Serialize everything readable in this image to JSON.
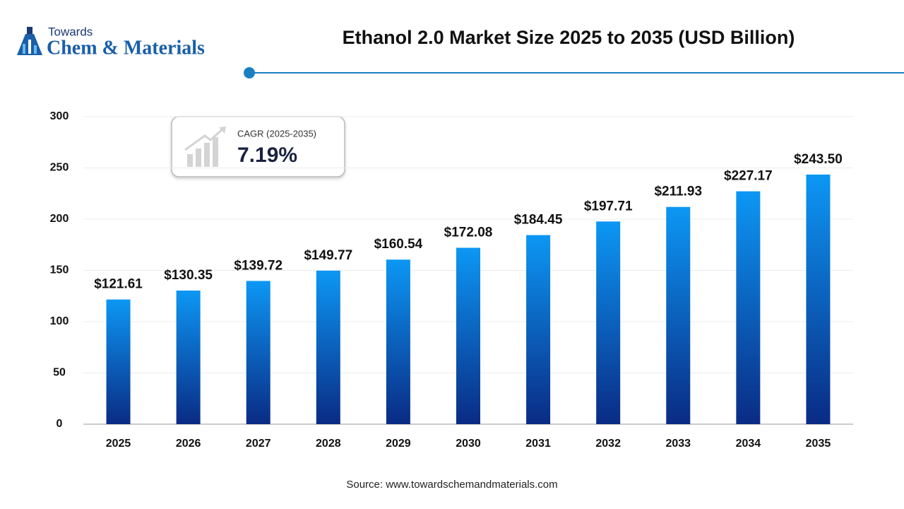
{
  "logo": {
    "top": "Towards",
    "bottom": "Chem & Materials"
  },
  "cagr": {
    "label": "CAGR (2025-2035)",
    "value": "7.19%"
  },
  "source": "Source: www.towardschemandmaterials.com",
  "chart_data": {
    "type": "bar",
    "title": "Ethanol 2.0 Market Size 2025 to 2035 (USD Billion)",
    "categories": [
      "2025",
      "2026",
      "2027",
      "2028",
      "2029",
      "2030",
      "2031",
      "2032",
      "2033",
      "2034",
      "2035"
    ],
    "values": [
      121.61,
      130.35,
      139.72,
      149.77,
      160.54,
      172.08,
      184.45,
      197.71,
      211.93,
      227.17,
      243.5
    ],
    "value_labels": [
      "$121.61",
      "$130.35",
      "$139.72",
      "$149.77",
      "$160.54",
      "$172.08",
      "$184.45",
      "$197.71",
      "$211.93",
      "$227.17",
      "$243.50"
    ],
    "gradient": [
      "#0c97f4",
      "#0a2b84"
    ],
    "ylim": [
      0,
      300
    ],
    "yticks": [
      0,
      50,
      100,
      150,
      200,
      250,
      300
    ],
    "grid": true
  }
}
